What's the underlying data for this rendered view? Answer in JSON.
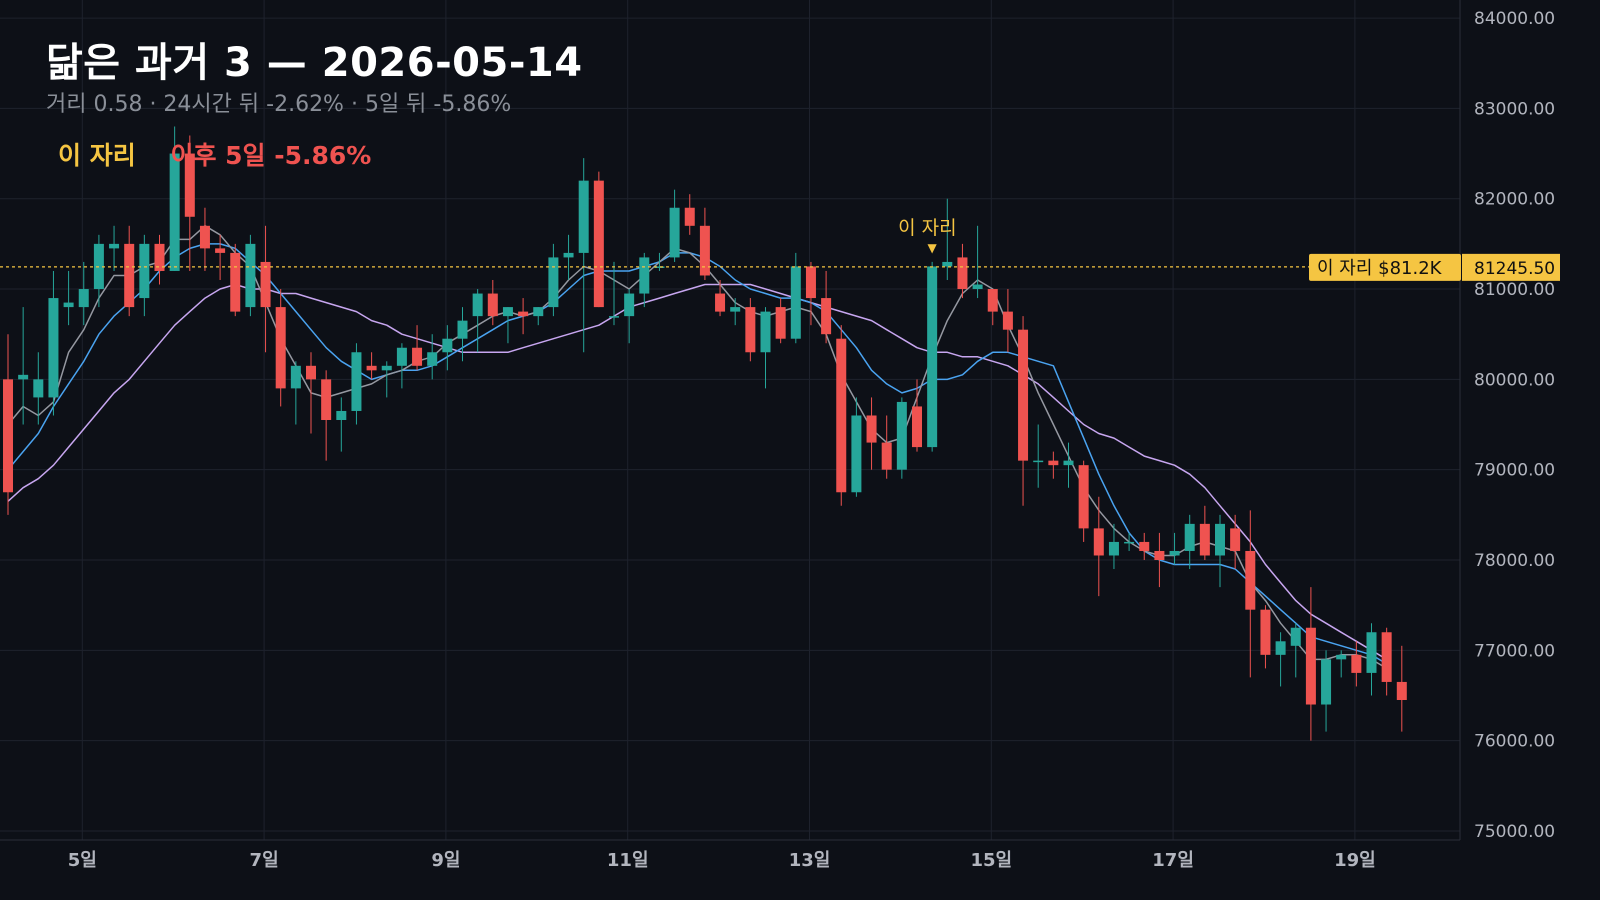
{
  "header": {
    "title": "닮은 과거 3 — 2026-05-14",
    "subtitle": "거리 0.58 · 24시간 뒤 -2.62% · 5일 뒤 -5.86%",
    "marker_label": "이 자리",
    "after_label": "이후 5일 -5.86%"
  },
  "colors": {
    "background": "#0d1017",
    "grid": "#1e222d",
    "up": "#26a69a",
    "down": "#ef5350",
    "ma_short": "#9598a1",
    "ma_mid": "#4aa3f0",
    "ma_long": "#c7a6f0",
    "marker": "#f5c542"
  },
  "chart_data": {
    "type": "candlestick",
    "y_axis": {
      "range": [
        74900,
        84200
      ],
      "ticks": [
        75000,
        76000,
        77000,
        78000,
        79000,
        80000,
        81000,
        82000,
        83000,
        84000
      ],
      "tick_labels": [
        "75000.00",
        "76000.00",
        "77000.00",
        "78000.00",
        "79000.00",
        "80000.00",
        "81000.00",
        "82000.00",
        "83000.00",
        "84000.00"
      ]
    },
    "x_axis": {
      "labels": [
        "5일",
        "7일",
        "9일",
        "11일",
        "13일",
        "15일",
        "17일",
        "19일"
      ],
      "label_positions": [
        2,
        14,
        26,
        38,
        50,
        62,
        74,
        86
      ]
    },
    "candles": [
      [
        80000,
        80500,
        78500,
        78750
      ],
      [
        80000,
        80800,
        79500,
        80050
      ],
      [
        79800,
        80300,
        79500,
        80000
      ],
      [
        79800,
        81200,
        79600,
        80900
      ],
      [
        80800,
        81200,
        80600,
        80850
      ],
      [
        80800,
        81300,
        80600,
        81000
      ],
      [
        81000,
        81600,
        80800,
        81500
      ],
      [
        81450,
        81700,
        81200,
        81500
      ],
      [
        81500,
        81700,
        80700,
        80800
      ],
      [
        80900,
        81600,
        80700,
        81500
      ],
      [
        81500,
        81600,
        81050,
        81200
      ],
      [
        81200,
        82800,
        81200,
        82500
      ],
      [
        82500,
        82700,
        81200,
        81800
      ],
      [
        81700,
        81900,
        81200,
        81450
      ],
      [
        81450,
        81600,
        81100,
        81400
      ],
      [
        81400,
        81500,
        80700,
        80750
      ],
      [
        80800,
        81600,
        80700,
        81500
      ],
      [
        81300,
        81700,
        80300,
        80800
      ],
      [
        80800,
        81000,
        79700,
        79900
      ],
      [
        79900,
        80200,
        79500,
        80150
      ],
      [
        80150,
        80300,
        79400,
        80000
      ],
      [
        80000,
        80100,
        79100,
        79550
      ],
      [
        79550,
        79800,
        79200,
        79650
      ],
      [
        79650,
        80400,
        79500,
        80300
      ],
      [
        80150,
        80300,
        80000,
        80100
      ],
      [
        80100,
        80200,
        79800,
        80150
      ],
      [
        80150,
        80400,
        79900,
        80350
      ],
      [
        80350,
        80600,
        80100,
        80150
      ],
      [
        80150,
        80500,
        80000,
        80300
      ],
      [
        80300,
        80600,
        80100,
        80450
      ],
      [
        80450,
        80800,
        80200,
        80650
      ],
      [
        80700,
        81000,
        80300,
        80950
      ],
      [
        80950,
        81100,
        80600,
        80700
      ],
      [
        80700,
        80800,
        80400,
        80800
      ],
      [
        80750,
        80900,
        80500,
        80700
      ],
      [
        80700,
        80800,
        80600,
        80800
      ],
      [
        80800,
        81500,
        80700,
        81350
      ],
      [
        81350,
        81600,
        81100,
        81400
      ],
      [
        81400,
        82450,
        80300,
        82200
      ],
      [
        82200,
        82300,
        80800,
        80800
      ],
      [
        80700,
        81300,
        80600,
        80700
      ],
      [
        80700,
        81000,
        80400,
        80950
      ],
      [
        80950,
        81400,
        80800,
        81350
      ],
      [
        81250,
        81400,
        81200,
        81250
      ],
      [
        81350,
        82100,
        81300,
        81900
      ],
      [
        81900,
        82050,
        81600,
        81700
      ],
      [
        81700,
        81900,
        81100,
        81150
      ],
      [
        80950,
        81100,
        80700,
        80750
      ],
      [
        80750,
        80900,
        80600,
        80800
      ],
      [
        80800,
        80900,
        80200,
        80300
      ],
      [
        80300,
        80800,
        79900,
        80750
      ],
      [
        80800,
        80900,
        80400,
        80450
      ],
      [
        80450,
        81400,
        80400,
        81250
      ],
      [
        81250,
        81300,
        80600,
        80900
      ],
      [
        80900,
        81200,
        80400,
        80500
      ],
      [
        80450,
        80600,
        78600,
        78750
      ],
      [
        78750,
        79800,
        78700,
        79600
      ],
      [
        79600,
        79800,
        79000,
        79300
      ],
      [
        79300,
        79600,
        78900,
        79000
      ],
      [
        79000,
        79800,
        78900,
        79750
      ],
      [
        79700,
        80000,
        79200,
        79250
      ],
      [
        79250,
        81300,
        79200,
        81250
      ],
      [
        81250,
        82000,
        81100,
        81300
      ],
      [
        81350,
        81500,
        80900,
        81000
      ],
      [
        81000,
        81700,
        80900,
        81050
      ],
      [
        81000,
        81000,
        80600,
        80750
      ],
      [
        80750,
        81000,
        80300,
        80550
      ],
      [
        80550,
        80700,
        78600,
        79100
      ],
      [
        79100,
        79500,
        78800,
        79100
      ],
      [
        79100,
        79200,
        78900,
        79050
      ],
      [
        79050,
        79300,
        78800,
        79100
      ],
      [
        79050,
        79100,
        78200,
        78350
      ],
      [
        78350,
        78700,
        77600,
        78050
      ],
      [
        78050,
        78400,
        77900,
        78200
      ],
      [
        78200,
        78300,
        78100,
        78200
      ],
      [
        78200,
        78300,
        78000,
        78100
      ],
      [
        78100,
        78300,
        77700,
        78000
      ],
      [
        78050,
        78300,
        77950,
        78100
      ],
      [
        78100,
        78500,
        77900,
        78400
      ],
      [
        78400,
        78600,
        78000,
        78050
      ],
      [
        78050,
        78500,
        77700,
        78400
      ],
      [
        78350,
        78500,
        77900,
        78100
      ],
      [
        78100,
        78550,
        76700,
        77450
      ],
      [
        77450,
        77500,
        76800,
        76950
      ],
      [
        76950,
        77200,
        76600,
        77100
      ],
      [
        77050,
        77300,
        76700,
        77250
      ],
      [
        77250,
        77700,
        76000,
        76400
      ],
      [
        76400,
        77000,
        76100,
        76900
      ],
      [
        76900,
        77000,
        76700,
        76950
      ],
      [
        76950,
        77100,
        76600,
        76750
      ],
      [
        76750,
        77300,
        76500,
        77200
      ],
      [
        77200,
        77250,
        76500,
        76650
      ],
      [
        76650,
        77050,
        76100,
        76450
      ]
    ],
    "series": [
      {
        "type": "line",
        "values": [
          79500,
          79700,
          79600,
          79750,
          80300,
          80550,
          80900,
          81150,
          81150,
          81250,
          81300,
          81550,
          81550,
          81700,
          81600,
          81400,
          81250,
          80850,
          80450,
          80150,
          79850,
          79800,
          79850,
          79900,
          79950,
          80050,
          80100,
          80200,
          80250,
          80400,
          80500,
          80600,
          80700,
          80750,
          80700,
          80750,
          80900,
          81100,
          81250,
          81200,
          81100,
          81000,
          81150,
          81300,
          81450,
          81400,
          81250,
          81050,
          80850,
          80750,
          80700,
          80750,
          80800,
          80750,
          80500,
          80050,
          79750,
          79450,
          79300,
          79350,
          79800,
          80250,
          80650,
          80950,
          81100,
          81000,
          80600,
          80250,
          79850,
          79500,
          79150,
          78800,
          78550,
          78350,
          78200,
          78100,
          78050,
          78050,
          78150,
          78200,
          78150,
          78100,
          77750,
          77550,
          77300,
          77100,
          76900,
          76900,
          76950,
          76950,
          76900,
          76800
        ]
      },
      {
        "type": "line",
        "values": [
          79000,
          79200,
          79400,
          79700,
          79950,
          80200,
          80500,
          80700,
          80850,
          81000,
          81200,
          81350,
          81450,
          81500,
          81500,
          81450,
          81300,
          81150,
          80950,
          80750,
          80550,
          80350,
          80200,
          80100,
          80000,
          80050,
          80100,
          80100,
          80150,
          80250,
          80350,
          80450,
          80550,
          80650,
          80700,
          80750,
          80850,
          81000,
          81150,
          81200,
          81200,
          81200,
          81250,
          81300,
          81400,
          81400,
          81350,
          81250,
          81100,
          81000,
          80950,
          80900,
          80900,
          80850,
          80750,
          80550,
          80350,
          80100,
          79950,
          79850,
          79900,
          80000,
          80000,
          80050,
          80200,
          80300,
          80300,
          80250,
          80200,
          80150,
          79750,
          79350,
          78950,
          78600,
          78300,
          78100,
          78000,
          77950,
          77950,
          77950,
          77950,
          77900,
          77750,
          77600,
          77450,
          77300,
          77150,
          77100,
          77050,
          77000,
          76950,
          76850
        ]
      },
      {
        "type": "line",
        "values": [
          78650,
          78800,
          78900,
          79050,
          79250,
          79450,
          79650,
          79850,
          80000,
          80200,
          80400,
          80600,
          80750,
          80900,
          81000,
          81050,
          81000,
          81000,
          80950,
          80950,
          80900,
          80850,
          80800,
          80750,
          80650,
          80600,
          80500,
          80450,
          80400,
          80350,
          80300,
          80300,
          80300,
          80300,
          80350,
          80400,
          80450,
          80500,
          80550,
          80600,
          80700,
          80800,
          80850,
          80900,
          80950,
          81000,
          81050,
          81050,
          81050,
          81050,
          81000,
          80950,
          80900,
          80850,
          80800,
          80750,
          80700,
          80650,
          80550,
          80450,
          80350,
          80300,
          80300,
          80250,
          80250,
          80200,
          80150,
          80050,
          79950,
          79800,
          79650,
          79500,
          79400,
          79350,
          79250,
          79150,
          79100,
          79050,
          78950,
          78800,
          78600,
          78400,
          78200,
          77950,
          77750,
          77550,
          77400,
          77300,
          77200,
          77100,
          77000,
          76900
        ]
      }
    ],
    "current_level": 81245.5,
    "current_level_label": "81245.50",
    "level_tag": "이 자리 $81.2K",
    "marker_index": 61,
    "marker_text": "이 자리",
    "marker_arrow": "▼"
  }
}
